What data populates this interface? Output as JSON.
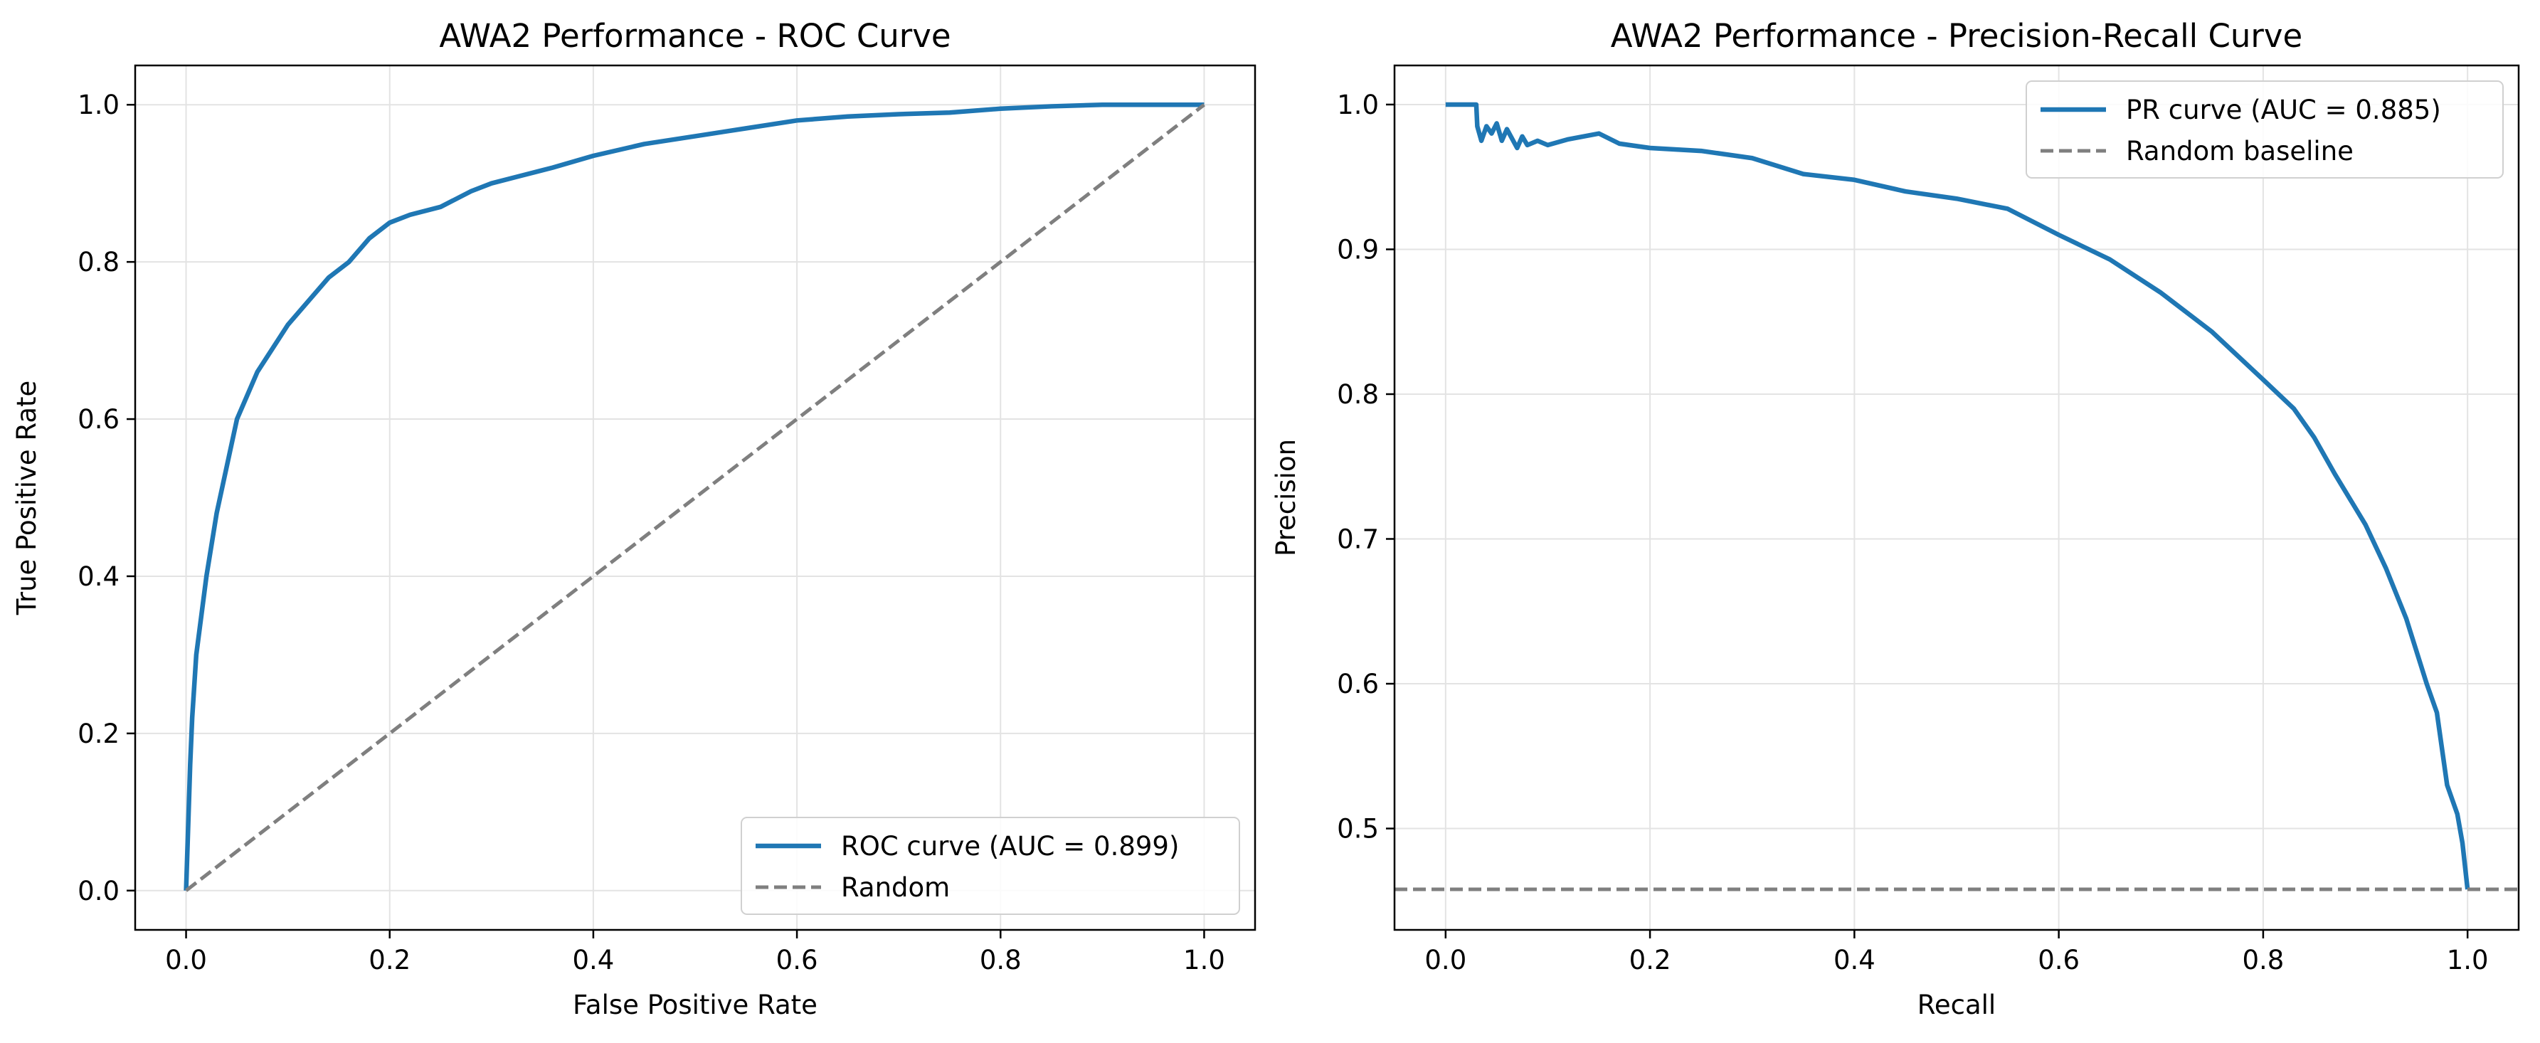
{
  "chart_data": [
    {
      "type": "line",
      "title": "AWA2 Performance - ROC Curve",
      "xlabel": "False Positive Rate",
      "ylabel": "True Positive Rate",
      "xlim": [
        -0.05,
        1.05
      ],
      "ylim": [
        -0.05,
        1.05
      ],
      "xticks": [
        0.0,
        0.2,
        0.4,
        0.6,
        0.8,
        1.0
      ],
      "yticks": [
        0.0,
        0.2,
        0.4,
        0.6,
        0.8,
        1.0
      ],
      "xtick_labels": [
        "0.0",
        "0.2",
        "0.4",
        "0.6",
        "0.8",
        "1.0"
      ],
      "ytick_labels": [
        "0.0",
        "0.2",
        "0.4",
        "0.6",
        "0.8",
        "1.0"
      ],
      "grid": true,
      "legend_position": "lower-right",
      "series": [
        {
          "name": "ROC curve (AUC = 0.899)",
          "color": "#1f77b4",
          "style": "solid",
          "x": [
            0.0,
            0.002,
            0.004,
            0.006,
            0.008,
            0.01,
            0.015,
            0.02,
            0.025,
            0.03,
            0.04,
            0.05,
            0.06,
            0.07,
            0.08,
            0.09,
            0.1,
            0.12,
            0.14,
            0.16,
            0.18,
            0.2,
            0.22,
            0.25,
            0.28,
            0.3,
            0.33,
            0.36,
            0.4,
            0.45,
            0.5,
            0.55,
            0.6,
            0.65,
            0.7,
            0.75,
            0.8,
            0.85,
            0.9,
            0.95,
            1.0
          ],
          "y": [
            0.0,
            0.08,
            0.16,
            0.22,
            0.26,
            0.3,
            0.35,
            0.4,
            0.44,
            0.48,
            0.54,
            0.6,
            0.63,
            0.66,
            0.68,
            0.7,
            0.72,
            0.75,
            0.78,
            0.8,
            0.83,
            0.85,
            0.86,
            0.87,
            0.89,
            0.9,
            0.91,
            0.92,
            0.935,
            0.95,
            0.96,
            0.97,
            0.98,
            0.985,
            0.988,
            0.99,
            0.995,
            0.998,
            1.0,
            1.0,
            1.0
          ]
        },
        {
          "name": "Random",
          "color": "#7f7f7f",
          "style": "dashed",
          "x": [
            0.0,
            1.0
          ],
          "y": [
            0.0,
            1.0
          ]
        }
      ]
    },
    {
      "type": "line",
      "title": "AWA2 Performance - Precision-Recall Curve",
      "xlabel": "Recall",
      "ylabel": "Precision",
      "xlim": [
        -0.05,
        1.05
      ],
      "ylim": [
        0.43,
        1.027
      ],
      "xticks": [
        0.0,
        0.2,
        0.4,
        0.6,
        0.8,
        1.0
      ],
      "yticks": [
        0.5,
        0.6,
        0.7,
        0.8,
        0.9,
        1.0
      ],
      "xtick_labels": [
        "0.0",
        "0.2",
        "0.4",
        "0.6",
        "0.8",
        "1.0"
      ],
      "ytick_labels": [
        "0.5",
        "0.6",
        "0.7",
        "0.8",
        "0.9",
        "1.0"
      ],
      "grid": true,
      "legend_position": "upper-right",
      "series": [
        {
          "name": "PR curve (AUC = 0.885)",
          "color": "#1f77b4",
          "style": "solid",
          "x": [
            0.0,
            0.03,
            0.031,
            0.035,
            0.04,
            0.045,
            0.05,
            0.055,
            0.06,
            0.07,
            0.075,
            0.08,
            0.09,
            0.1,
            0.12,
            0.15,
            0.17,
            0.2,
            0.25,
            0.3,
            0.35,
            0.4,
            0.45,
            0.5,
            0.55,
            0.6,
            0.65,
            0.7,
            0.75,
            0.8,
            0.83,
            0.85,
            0.87,
            0.9,
            0.92,
            0.94,
            0.96,
            0.97,
            0.98,
            0.99,
            0.995,
            1.0
          ],
          "y": [
            1.0,
            1.0,
            0.985,
            0.975,
            0.985,
            0.98,
            0.987,
            0.975,
            0.983,
            0.97,
            0.978,
            0.972,
            0.975,
            0.972,
            0.976,
            0.98,
            0.973,
            0.97,
            0.968,
            0.963,
            0.952,
            0.948,
            0.94,
            0.935,
            0.928,
            0.91,
            0.893,
            0.87,
            0.843,
            0.81,
            0.79,
            0.77,
            0.745,
            0.71,
            0.68,
            0.645,
            0.6,
            0.58,
            0.53,
            0.51,
            0.49,
            0.458
          ]
        },
        {
          "name": "Random baseline",
          "color": "#7f7f7f",
          "style": "dashed",
          "x": [
            -0.05,
            1.05
          ],
          "y": [
            0.458,
            0.458
          ]
        }
      ]
    }
  ]
}
